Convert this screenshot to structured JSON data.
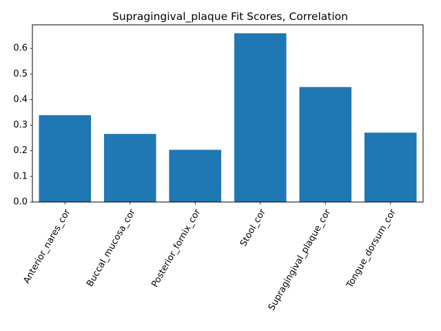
{
  "chart_data": {
    "type": "bar",
    "title": "Supragingival_plaque Fit Scores, Correlation",
    "xlabel": "",
    "ylabel": "",
    "categories": [
      "Anterior_nares_cor",
      "Buccal_mucosa_cor",
      "Posterior_fornix_cor",
      "Stool_cor",
      "Supragingival_plaque_cor",
      "Tongue_dorsum_cor"
    ],
    "values": [
      0.339,
      0.266,
      0.204,
      0.659,
      0.449,
      0.271
    ],
    "ylim": [
      0,
      0.692
    ],
    "yticks": [
      0.0,
      0.1,
      0.2,
      0.3,
      0.4,
      0.5,
      0.6
    ],
    "ytick_labels": [
      "0.0",
      "0.1",
      "0.2",
      "0.3",
      "0.4",
      "0.5",
      "0.6"
    ],
    "bar_color": "#1f77b4",
    "grid": false,
    "legend": "none"
  }
}
